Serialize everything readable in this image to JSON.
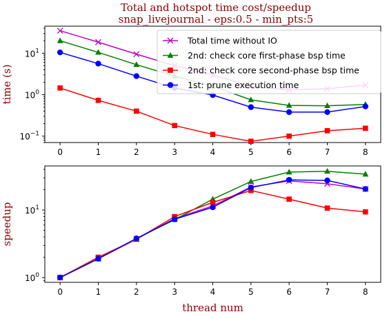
{
  "figure": {
    "title_line1": "Total and hotspot time cost/speedup",
    "title_line2": "snap_livejournal - eps:0.5 - min_pts:5",
    "title_color": "#8b0000"
  },
  "chart_data": [
    {
      "type": "line",
      "ylabel": "time (s)",
      "yscale": "log",
      "ylim": [
        0.07,
        45
      ],
      "xlim": [
        -0.4,
        8.4
      ],
      "x": [
        0,
        1,
        2,
        3,
        4,
        5,
        6,
        7,
        8
      ],
      "y_ticks": [
        0.1,
        1,
        10
      ],
      "y_tick_labels": [
        [
          "10",
          "−1"
        ],
        [
          "10",
          "0"
        ],
        [
          "10",
          "1"
        ]
      ],
      "legend": "top-right",
      "series": [
        {
          "name": "Total time without IO",
          "color": "#bf00bf",
          "marker": "x",
          "values": [
            35,
            18.5,
            9.5,
            5.0,
            3.0,
            1.6,
            1.3,
            1.4,
            1.7
          ]
        },
        {
          "name": "2nd: check core first-phase bsp time",
          "color": "#008000",
          "marker": "triangle",
          "values": [
            20,
            10.5,
            5.3,
            2.8,
            1.6,
            0.75,
            0.55,
            0.54,
            0.58
          ]
        },
        {
          "name": "2nd: check core second-phase bsp time",
          "color": "#ff0000",
          "marker": "square",
          "values": [
            1.45,
            0.73,
            0.4,
            0.18,
            0.11,
            0.075,
            0.1,
            0.135,
            0.155
          ]
        },
        {
          "name": "1st: prune execution time",
          "color": "#0000ff",
          "marker": "circle",
          "values": [
            10.5,
            5.6,
            2.8,
            1.45,
            0.98,
            0.5,
            0.38,
            0.38,
            0.52
          ]
        }
      ]
    },
    {
      "type": "line",
      "xlabel": "thread num",
      "ylabel": "speedup",
      "yscale": "log",
      "ylim": [
        0.85,
        45
      ],
      "xlim": [
        -0.4,
        8.4
      ],
      "x": [
        0,
        1,
        2,
        3,
        4,
        5,
        6,
        7,
        8
      ],
      "x_tick_labels": [
        "0",
        "1",
        "2",
        "3",
        "4",
        "5",
        "6",
        "7",
        "8"
      ],
      "y_ticks": [
        1,
        10
      ],
      "y_tick_labels": [
        [
          "10",
          "0"
        ],
        [
          "10",
          "1"
        ]
      ],
      "series": [
        {
          "name": "Total time without IO",
          "color": "#bf00bf",
          "marker": "x",
          "values": [
            1.0,
            1.9,
            3.7,
            7.5,
            11.5,
            22,
            27,
            24.5,
            20.5
          ]
        },
        {
          "name": "2nd: check core first-phase bsp time",
          "color": "#008000",
          "marker": "triangle",
          "values": [
            1.0,
            1.9,
            3.8,
            7.2,
            14.5,
            26.5,
            36.5,
            37.5,
            34
          ]
        },
        {
          "name": "2nd: check core second-phase bsp time",
          "color": "#ff0000",
          "marker": "square",
          "values": [
            1.0,
            2.0,
            3.7,
            8.0,
            13.0,
            19.5,
            14.5,
            10.7,
            9.4
          ]
        },
        {
          "name": "1st: prune execution time",
          "color": "#0000ff",
          "marker": "circle",
          "values": [
            1.0,
            1.9,
            3.8,
            7.3,
            11.0,
            21.5,
            28,
            27.5,
            20.5
          ]
        }
      ]
    }
  ]
}
